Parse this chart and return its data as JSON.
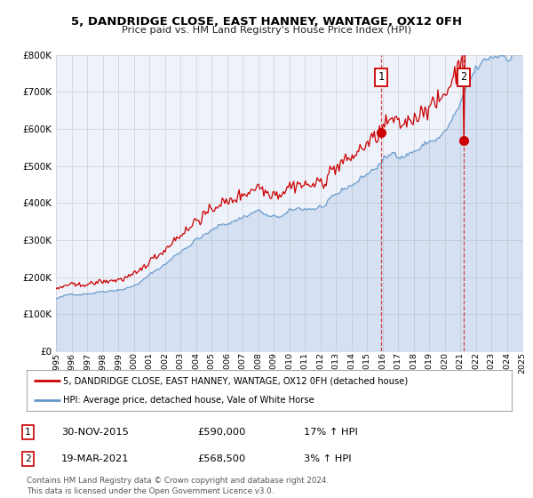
{
  "title": "5, DANDRIDGE CLOSE, EAST HANNEY, WANTAGE, OX12 0FH",
  "subtitle": "Price paid vs. HM Land Registry's House Price Index (HPI)",
  "legend_line1": "5, DANDRIDGE CLOSE, EAST HANNEY, WANTAGE, OX12 0FH (detached house)",
  "legend_line2": "HPI: Average price, detached house, Vale of White Horse",
  "sale1_date": "30-NOV-2015",
  "sale1_price": "£590,000",
  "sale1_hpi": "17% ↑ HPI",
  "sale1_year": 2015.92,
  "sale1_value": 590000,
  "sale2_date": "19-MAR-2021",
  "sale2_price": "£568,500",
  "sale2_hpi": "3% ↑ HPI",
  "sale2_year": 2021.21,
  "sale2_value": 568500,
  "red_color": "#cc0000",
  "blue_color": "#6699cc",
  "background_color": "#eef2fb",
  "plot_bg_color": "#ffffff",
  "grid_color": "#cccccc",
  "footnote": "Contains HM Land Registry data © Crown copyright and database right 2024.\nThis data is licensed under the Open Government Licence v3.0.",
  "ylim": [
    0,
    800000
  ],
  "xlim_start": 1995,
  "xlim_end": 2025
}
